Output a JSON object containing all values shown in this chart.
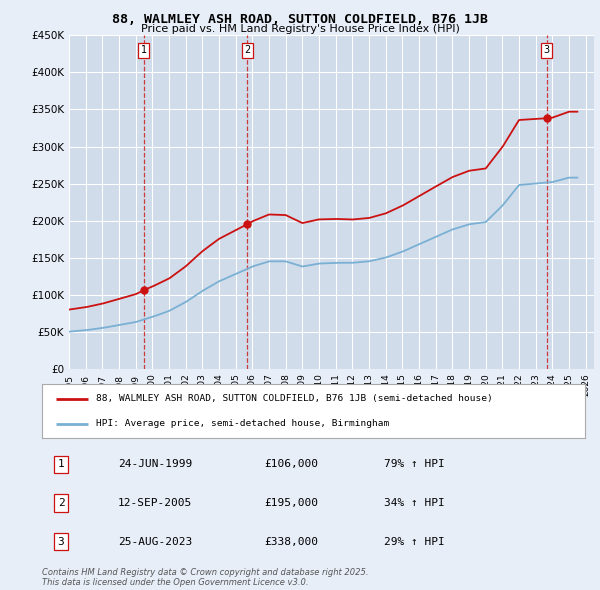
{
  "title1": "88, WALMLEY ASH ROAD, SUTTON COLDFIELD, B76 1JB",
  "title2": "Price paid vs. HM Land Registry's House Price Index (HPI)",
  "bg_color": "#e8eef8",
  "plot_bg": "#d0dcea",
  "grid_color": "#ffffff",
  "line1_color": "#cc1111",
  "line2_color": "#7ab0d4",
  "vline_color": "#cc1111",
  "ylim": [
    0,
    450000
  ],
  "yticks": [
    0,
    50000,
    100000,
    150000,
    200000,
    250000,
    300000,
    350000,
    400000,
    450000
  ],
  "ytick_labels": [
    "£0",
    "£50K",
    "£100K",
    "£150K",
    "£200K",
    "£250K",
    "£300K",
    "£350K",
    "£400K",
    "£450K"
  ],
  "xmin": 1995.0,
  "xmax": 2026.5,
  "legend_label1": "88, WALMLEY ASH ROAD, SUTTON COLDFIELD, B76 1JB (semi-detached house)",
  "legend_label2": "HPI: Average price, semi-detached house, Birmingham",
  "sale1_x": 1999.48,
  "sale1_y": 106000,
  "sale2_x": 2005.71,
  "sale2_y": 195000,
  "sale3_x": 2023.65,
  "sale3_y": 338000,
  "table_rows": [
    [
      "1",
      "24-JUN-1999",
      "£106,000",
      "79% ↑ HPI"
    ],
    [
      "2",
      "12-SEP-2005",
      "£195,000",
      "34% ↑ HPI"
    ],
    [
      "3",
      "25-AUG-2023",
      "£338,000",
      "29% ↑ HPI"
    ]
  ],
  "footnote": "Contains HM Land Registry data © Crown copyright and database right 2025.\nThis data is licensed under the Open Government Licence v3.0.",
  "xticks": [
    1995,
    1996,
    1997,
    1998,
    1999,
    2000,
    2001,
    2002,
    2003,
    2004,
    2005,
    2006,
    2007,
    2008,
    2009,
    2010,
    2011,
    2012,
    2013,
    2014,
    2015,
    2016,
    2017,
    2018,
    2019,
    2020,
    2021,
    2022,
    2023,
    2024,
    2025,
    2026
  ],
  "years_hpi": [
    1995,
    1996,
    1997,
    1998,
    1999,
    2000,
    2001,
    2002,
    2003,
    2004,
    2005,
    2006,
    2007,
    2008,
    2009,
    2010,
    2011,
    2012,
    2013,
    2014,
    2015,
    2016,
    2017,
    2018,
    2019,
    2020,
    2021,
    2022,
    2023,
    2024,
    2025
  ],
  "hpi_vals": [
    50000,
    52000,
    55000,
    59000,
    63000,
    70000,
    78000,
    90000,
    105000,
    118000,
    128000,
    138000,
    145000,
    145000,
    138000,
    142000,
    143000,
    143000,
    145000,
    150000,
    158000,
    168000,
    178000,
    188000,
    195000,
    198000,
    220000,
    248000,
    250000,
    252000,
    258000
  ]
}
